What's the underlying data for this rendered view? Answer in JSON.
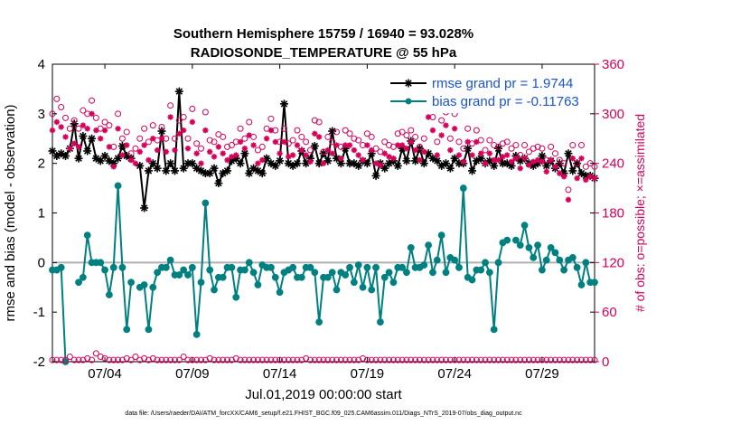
{
  "chart_data": {
    "type": "line",
    "title": [
      "Southern Hemisphere 15759 / 16940 = 93.028%",
      "RADIOSONDE_TEMPERATURE @ 55 hPa"
    ],
    "xlabel": "Jul.01,2019 00:00:00 start",
    "ylabel": "rmse and bias (model - observation)",
    "y2label": "# of obs: o=possible; ×=assimilated",
    "footer": "data file: /Users/raeder/DAI/ATM_forcXX/CAM6_setup/f.e21.FHIST_BGC.f09_025.CAM6assim.011/Diags_NTrS_2019-07/obs_diag_output.nc",
    "xlim": [
      1,
      32
    ],
    "ylim": [
      -2,
      4
    ],
    "y2lim": [
      0,
      360
    ],
    "yticks": [
      -2,
      -1,
      0,
      1,
      2,
      3,
      4
    ],
    "y2ticks": [
      0,
      60,
      120,
      180,
      240,
      300,
      360
    ],
    "xticks": [
      {
        "day": 4.0,
        "label": "07/04"
      },
      {
        "day": 9.0,
        "label": "07/09"
      },
      {
        "day": 14.0,
        "label": "07/14"
      },
      {
        "day": 19.0,
        "label": "07/19"
      },
      {
        "day": 24.0,
        "label": "07/24"
      },
      {
        "day": 29.0,
        "label": "07/29"
      }
    ],
    "x": [
      1.0,
      1.25,
      1.5,
      1.75,
      2.0,
      2.25,
      2.5,
      2.75,
      3.0,
      3.25,
      3.5,
      3.75,
      4.0,
      4.25,
      4.5,
      4.75,
      5.0,
      5.25,
      5.5,
      5.75,
      6.0,
      6.25,
      6.5,
      6.75,
      7.0,
      7.25,
      7.5,
      7.75,
      8.0,
      8.25,
      8.5,
      8.75,
      9.0,
      9.25,
      9.5,
      9.75,
      10.0,
      10.25,
      10.5,
      10.75,
      11.0,
      11.25,
      11.5,
      11.75,
      12.0,
      12.25,
      12.5,
      12.75,
      13.0,
      13.25,
      13.5,
      13.75,
      14.0,
      14.25,
      14.5,
      14.75,
      15.0,
      15.25,
      15.5,
      15.75,
      16.0,
      16.25,
      16.5,
      16.75,
      17.0,
      17.25,
      17.5,
      17.75,
      18.0,
      18.25,
      18.5,
      18.75,
      19.0,
      19.25,
      19.5,
      19.75,
      20.0,
      20.25,
      20.5,
      20.75,
      21.0,
      21.25,
      21.5,
      21.75,
      22.0,
      22.25,
      22.5,
      22.75,
      23.0,
      23.25,
      23.5,
      23.75,
      24.0,
      24.25,
      24.5,
      24.75,
      25.0,
      25.25,
      25.5,
      25.75,
      26.0,
      26.25,
      26.5,
      26.75,
      27.0,
      27.25,
      27.5,
      27.75,
      28.0,
      28.25,
      28.5,
      28.75,
      29.0,
      29.25,
      29.5,
      29.75,
      30.0,
      30.25,
      30.5,
      30.75,
      31.0,
      31.25,
      31.5,
      31.75,
      32.0
    ],
    "series": [
      {
        "name": "rmse grand pr = 1.9744",
        "color": "#000000",
        "marker": "star",
        "axis": "left",
        "values": [
          2.25,
          2.15,
          2.2,
          2.15,
          2.3,
          2.8,
          2.1,
          2.55,
          2.25,
          2.5,
          2.1,
          2.05,
          2.15,
          2.05,
          2.0,
          2.1,
          2.35,
          2.15,
          2.1,
          null,
          1.95,
          1.1,
          1.85,
          2.0,
          1.9,
          2.65,
          1.85,
          2.0,
          1.85,
          3.45,
          1.9,
          2.0,
          2.0,
          1.9,
          1.85,
          1.8,
          1.8,
          1.9,
          1.6,
          1.8,
          1.85,
          2.05,
          2.1,
          2.0,
          2.2,
          1.8,
          1.9,
          1.85,
          1.8,
          2.1,
          2.0,
          1.95,
          2.05,
          3.2,
          2.0,
          1.95,
          2.0,
          2.25,
          2.0,
          2.1,
          2.35,
          2.0,
          2.2,
          2.05,
          2.65,
          2.1,
          2.0,
          2.3,
          2.0,
          2.0,
          1.95,
          2.05,
          2.0,
          2.2,
          1.75,
          2.0,
          1.9,
          2.0,
          2.05,
          1.95,
          2.3,
          2.05,
          2.45,
          2.05,
          2.3,
          2.0,
          2.2,
          2.1,
          2.05,
          1.95,
          2.0,
          1.9,
          2.1,
          2.0,
          2.0,
          2.3,
          1.85,
          2.05,
          2.1,
          2.0,
          2.05,
          1.95,
          2.3,
          2.0,
          2.0,
          1.95,
          2.15,
          2.05,
          2.1,
          2.0,
          1.95,
          2.0,
          2.15,
          1.95,
          2.05,
          1.9,
          2.0,
          1.8,
          2.2,
          1.85,
          2.0,
          1.8,
          1.75,
          1.75,
          1.7
        ]
      },
      {
        "name": "bias grand pr = -0.11763",
        "color": "#008080",
        "marker": "circle",
        "axis": "left",
        "values": [
          -0.15,
          -0.15,
          -0.1,
          -2.0,
          null,
          null,
          -0.4,
          -0.3,
          0.55,
          0.0,
          0.0,
          0.0,
          -0.15,
          -0.65,
          -0.1,
          1.55,
          -0.1,
          -1.35,
          -0.4,
          null,
          -0.5,
          -0.45,
          -1.35,
          -0.5,
          -0.2,
          -0.1,
          -0.1,
          0.05,
          -0.25,
          -0.25,
          -0.15,
          -0.25,
          -0.1,
          -1.45,
          -0.4,
          1.2,
          -0.15,
          -0.55,
          -0.3,
          -0.3,
          -0.1,
          -0.1,
          -0.7,
          -0.15,
          -0.15,
          0.0,
          -0.2,
          -0.45,
          -0.05,
          -0.1,
          -0.1,
          -0.3,
          -0.6,
          -0.2,
          -0.15,
          -0.1,
          -0.3,
          -0.3,
          -0.1,
          -0.1,
          -0.2,
          -1.2,
          -0.3,
          -0.3,
          -0.2,
          -0.55,
          -0.2,
          -0.25,
          -0.1,
          -0.4,
          -0.05,
          -0.5,
          -0.1,
          -0.55,
          -0.1,
          -1.2,
          -0.3,
          -0.2,
          -0.4,
          -0.1,
          -0.1,
          -0.2,
          0.3,
          -0.1,
          -0.1,
          -0.05,
          0.35,
          -0.2,
          0.05,
          0.55,
          -0.2,
          0.1,
          0.05,
          -0.1,
          1.5,
          -0.3,
          -0.35,
          -0.15,
          -0.15,
          0.0,
          -0.2,
          -1.35,
          0.0,
          0.4,
          0.45,
          null,
          0.45,
          0.35,
          0.75,
          0.3,
          0.1,
          0.35,
          -0.15,
          0.05,
          0.3,
          0.2,
          0.05,
          -0.15,
          0.05,
          0.1,
          -0.1,
          -0.45,
          0.0,
          -0.4,
          -0.4
        ]
      },
      {
        "name": "obs possible",
        "color": "#d6005a",
        "marker": "o",
        "axis": "right",
        "values": [
          300,
          318,
          308,
          295,
          282,
          292,
          282,
          304,
          300,
          316,
          295,
          282,
          290,
          286,
          260,
          300,
          270,
          278,
          252,
          258,
          270,
          282,
          266,
          286,
          268,
          284,
          270,
          310,
          270,
          292,
          296,
          270,
          306,
          264,
          258,
          302,
          268,
          266,
          275,
          272,
          260,
          262,
          266,
          282,
          270,
          290,
          272,
          256,
          260,
          282,
          294,
          280,
          266,
          282,
          264,
          268,
          280,
          272,
          266,
          256,
          292,
          290,
          254,
          272,
          266,
          278,
          260,
          280,
          276,
          270,
          268,
          262,
          276,
          272,
          258,
          254,
          266,
          262,
          260,
          276,
          278,
          274,
          280,
          272,
          260,
          270,
          312,
          296,
          266,
          292,
          302,
          270,
          300,
          266,
          258,
          282,
          264,
          280,
          268,
          256,
          268,
          262,
          260,
          264,
          266,
          258,
          262,
          250,
          262,
          254,
          258,
          260,
          258,
          244,
          260,
          252,
          244,
          240,
          208,
          262,
          240,
          262,
          236,
          240,
          236
        ]
      },
      {
        "name": "obs assimilated",
        "color": "#d6005a",
        "marker": "star",
        "axis": "right",
        "values": [
          280,
          290,
          284,
          272,
          258,
          264,
          260,
          286,
          282,
          300,
          280,
          270,
          280,
          260,
          236,
          282,
          250,
          262,
          244,
          240,
          254,
          262,
          244,
          270,
          256,
          270,
          254,
          296,
          256,
          276,
          280,
          258,
          290,
          252,
          240,
          280,
          254,
          248,
          260,
          252,
          244,
          248,
          250,
          266,
          258,
          274,
          262,
          240,
          244,
          270,
          280,
          266,
          252,
          266,
          248,
          250,
          262,
          256,
          250,
          242,
          276,
          272,
          240,
          256,
          252,
          262,
          246,
          262,
          262,
          256,
          250,
          244,
          262,
          256,
          240,
          238,
          252,
          248,
          246,
          262,
          262,
          258,
          266,
          256,
          244,
          254,
          296,
          280,
          250,
          274,
          286,
          256,
          282,
          250,
          242,
          266,
          250,
          266,
          252,
          240,
          252,
          244,
          244,
          248,
          250,
          242,
          246,
          234,
          246,
          238,
          242,
          244,
          242,
          230,
          244,
          236,
          228,
          224,
          196,
          246,
          222,
          246,
          220,
          224,
          222
        ]
      },
      {
        "name": "bottom obs possible",
        "color": "#d6005a",
        "marker": "o",
        "axis": "right",
        "values": [
          2,
          2,
          2,
          2,
          6,
          2,
          2,
          2,
          4,
          2,
          10,
          6,
          4,
          2,
          2,
          2,
          2,
          4,
          2,
          6,
          2,
          4,
          2,
          4,
          2,
          2,
          2,
          2,
          2,
          2,
          6,
          2,
          2,
          2,
          2,
          2,
          4,
          2,
          2,
          2,
          2,
          2,
          4,
          2,
          2,
          2,
          2,
          2,
          2,
          2,
          2,
          2,
          2,
          2,
          2,
          2,
          2,
          2,
          4,
          2,
          2,
          2,
          2,
          2,
          2,
          2,
          2,
          2,
          2,
          2,
          2,
          4,
          2,
          2,
          2,
          2,
          2,
          2,
          2,
          2,
          2,
          2,
          2,
          2,
          2,
          2,
          2,
          2,
          2,
          2,
          2,
          2,
          2,
          2,
          2,
          2,
          2,
          2,
          2,
          2,
          2,
          2,
          2,
          2,
          2,
          2,
          2,
          2,
          2,
          2,
          2,
          2,
          2,
          2,
          2,
          2,
          2,
          2,
          2,
          2,
          2,
          2,
          2,
          2,
          2
        ]
      }
    ]
  }
}
